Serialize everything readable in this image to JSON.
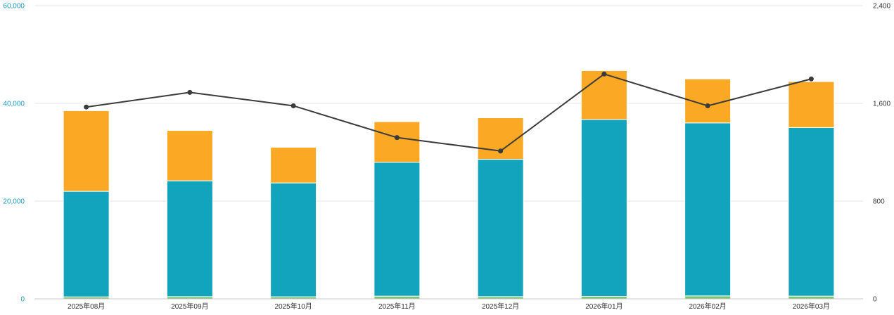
{
  "chart_data": {
    "type": "bar",
    "stacked": true,
    "categories": [
      "2025年08月",
      "2025年09月",
      "2025年10月",
      "2025年11月",
      "2025年12月",
      "2026年01月",
      "2026年02月",
      "2026年03月"
    ],
    "series": [
      {
        "type": "bar",
        "axis": "left",
        "color": "#7cc46e",
        "values": [
          400,
          450,
          420,
          550,
          450,
          500,
          600,
          550
        ]
      },
      {
        "type": "bar",
        "axis": "left",
        "color": "#11a4bc",
        "values": [
          21600,
          23700,
          23300,
          27400,
          28100,
          36200,
          35400,
          34500
        ]
      },
      {
        "type": "bar",
        "axis": "left",
        "color": "#fba825",
        "values": [
          16500,
          10300,
          7300,
          8300,
          8500,
          10000,
          9000,
          9400
        ]
      },
      {
        "type": "line",
        "axis": "right",
        "color": "#3b3b3b",
        "values": [
          1570,
          1690,
          1580,
          1320,
          1210,
          1840,
          1580,
          1800
        ]
      }
    ],
    "y_left": {
      "range": [
        0,
        60000
      ],
      "ticks": [
        "0",
        "20,000",
        "40,000",
        "60,000"
      ],
      "color": "#1a9bb8"
    },
    "y_right": {
      "range": [
        0,
        2400
      ],
      "ticks": [
        "0",
        "800",
        "1,600",
        "2,400"
      ],
      "color": "#333333"
    },
    "grid": true,
    "legend": "none"
  }
}
